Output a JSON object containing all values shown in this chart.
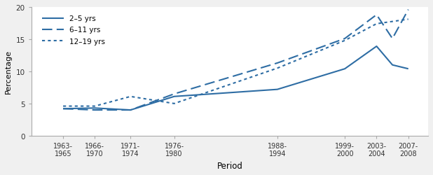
{
  "x_tick_positions": [
    1964,
    1968,
    1972.5,
    1978,
    1991,
    1999.5,
    2003.5,
    2007.5
  ],
  "x_labels": [
    "1963-\n1965",
    "1966-\n1970",
    "1971-\n1974",
    "1976-\n1980",
    "1988-\n1994",
    "1999-\n2000",
    "2003-\n2004",
    "2007-\n2008"
  ],
  "series": [
    {
      "label": "2–5 yrs",
      "linestyle": "solid",
      "data_x": [
        1964,
        1968,
        1972.5,
        1978,
        1991,
        1999.5,
        2003.5,
        2005.5,
        2007.5
      ],
      "data_y": [
        4.2,
        4.3,
        4.0,
        6.1,
        7.2,
        10.4,
        13.9,
        11.0,
        10.4
      ]
    },
    {
      "label": "6–11 yrs",
      "linestyle": "dashed",
      "data_x": [
        1964,
        1968,
        1972.5,
        1978,
        1991,
        1999.5,
        2003.5,
        2005.5,
        2007.5
      ],
      "data_y": [
        4.2,
        4.0,
        4.0,
        6.5,
        11.3,
        15.1,
        18.8,
        15.1,
        19.6
      ]
    },
    {
      "label": "12–19 yrs",
      "linestyle": "dotted",
      "data_x": [
        1964,
        1968,
        1972.5,
        1978,
        1991,
        1999.5,
        2003.5,
        2007.5
      ],
      "data_y": [
        4.6,
        4.6,
        6.1,
        5.0,
        10.5,
        14.8,
        17.4,
        18.1
      ]
    }
  ],
  "color": "#2e6da4",
  "ylim": [
    0,
    20
  ],
  "yticks": [
    0,
    5,
    10,
    15,
    20
  ],
  "xlim": [
    1960,
    2010
  ],
  "ylabel": "Percentage",
  "xlabel": "Period",
  "linewidth": 1.5,
  "background_color": "#f0f0f0",
  "plot_background": "#ffffff"
}
